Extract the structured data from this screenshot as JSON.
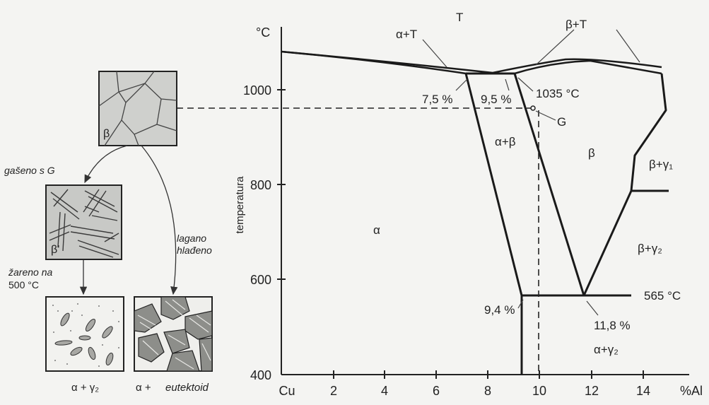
{
  "phase_diagram": {
    "y_axis": {
      "unit": "°C",
      "title": "temperatura",
      "ticks": [
        "1000",
        "800",
        "600",
        "400"
      ]
    },
    "x_axis": {
      "unit": "%Al",
      "ticks": [
        "Cu",
        "2",
        "4",
        "6",
        "8",
        "10",
        "12",
        "14"
      ]
    },
    "regions": {
      "liquid": "T",
      "alpha_liquid": "α+T",
      "beta_liquid": "β+T",
      "alpha": "α",
      "alpha_beta": "α+β",
      "beta": "β",
      "beta_gamma1": "β+γ₁",
      "beta_gamma2": "β+γ₂",
      "alpha_gamma2": "α+γ₂"
    },
    "annotations": {
      "c1": "7,5 %",
      "c2": "9,5 %",
      "peritectic_temp": "1035 °C",
      "point_g": "G",
      "c3": "9,4 %",
      "c4": "11,8 %",
      "eutectoid_temp": "565 °C"
    }
  },
  "microstructures": {
    "beta_box": {
      "label": "β"
    },
    "quenched_box": {
      "label": "β'"
    },
    "annealed_box": {
      "caption": "α + γ₂"
    },
    "slow_box": {
      "caption_alpha": "α + ",
      "caption_eutectoid": "eutektoid"
    },
    "arrows": {
      "quenched": "gašeno s G",
      "annealed_line1": "žareno na",
      "annealed_line2": "500 °C",
      "slow_line1": "lagano",
      "slow_line2": "hlađeno"
    }
  }
}
